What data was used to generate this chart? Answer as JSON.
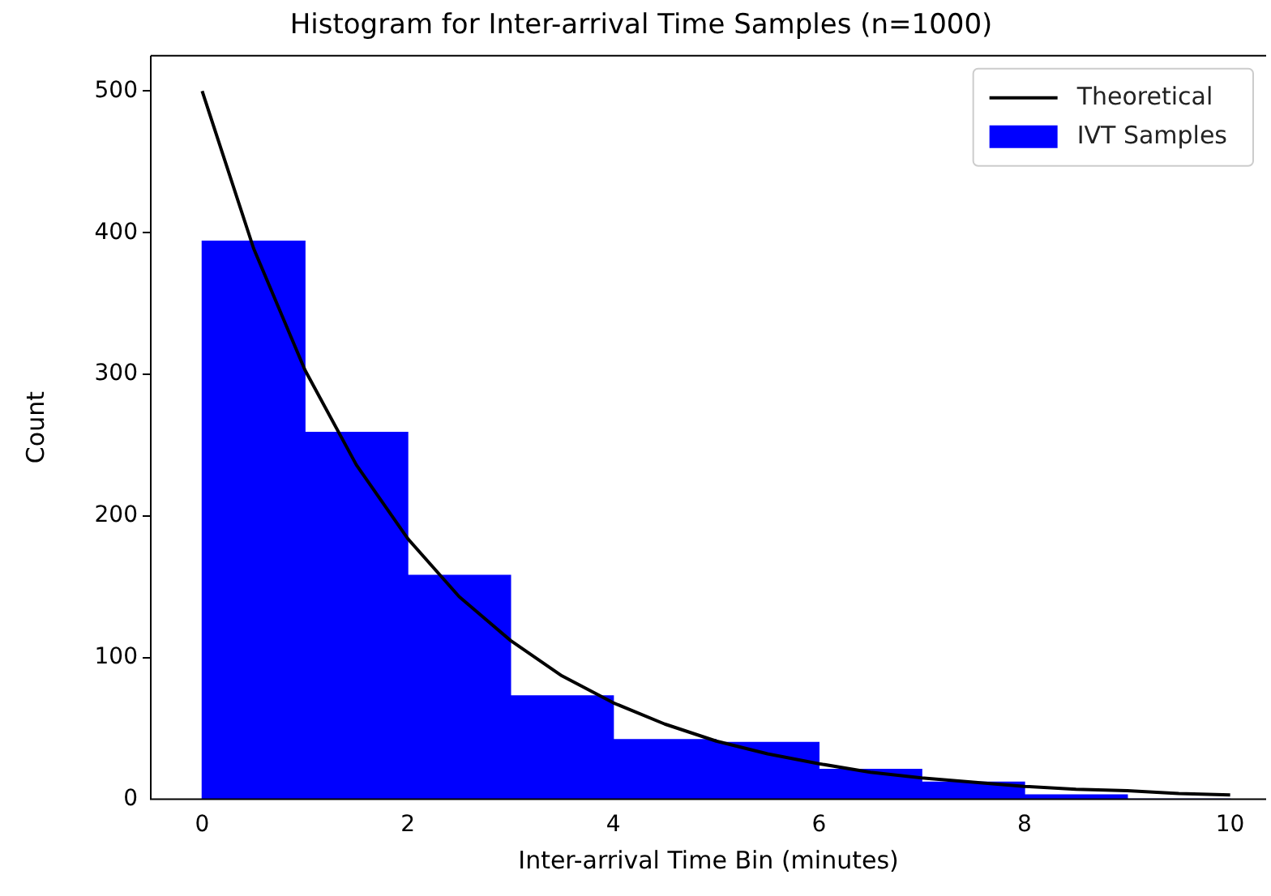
{
  "chart_data": {
    "type": "histogram",
    "title": "Histogram for Inter-arrival Time Samples (n=1000)",
    "xlabel": "Inter-arrival Time Bin (minutes)",
    "ylabel": "Count",
    "series": [
      {
        "type": "line",
        "name": "Theoretical",
        "color": "#000000",
        "x": [
          0,
          0.5,
          1,
          1.5,
          2,
          2.5,
          3,
          3.5,
          4,
          4.5,
          5,
          5.5,
          6,
          6.5,
          7,
          7.5,
          8,
          8.5,
          9,
          9.5,
          10
        ],
        "values": [
          500,
          389,
          303,
          236,
          184,
          143,
          112,
          87,
          68,
          53,
          41,
          32,
          25,
          19,
          15,
          12,
          9,
          7,
          6,
          4,
          3
        ]
      },
      {
        "name": "IVT Samples",
        "color": "#0000ff",
        "bins": [
          0,
          1,
          2,
          3,
          4,
          5,
          6,
          7,
          8,
          9,
          10
        ],
        "values": [
          394,
          259,
          158,
          73,
          42,
          40,
          21,
          12,
          3,
          0
        ]
      }
    ],
    "xlim": [
      -0.5,
      10.35
    ],
    "xticks": [
      0,
      2,
      4,
      6,
      8,
      10
    ],
    "ylim": [
      0,
      525
    ],
    "yticks": [
      0,
      100,
      200,
      300,
      400,
      500
    ],
    "grid": false,
    "legend": "top right"
  }
}
